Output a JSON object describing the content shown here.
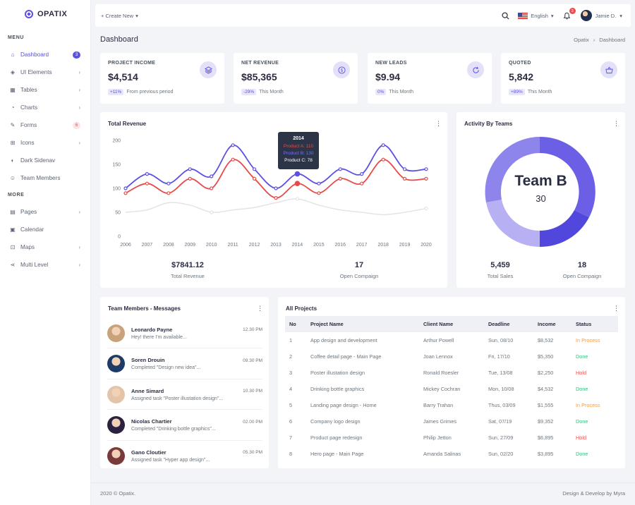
{
  "brand": {
    "name": "OPATIX"
  },
  "sidebar": {
    "menu_title": "MENU",
    "more_title": "MORE",
    "items": [
      {
        "label": "Dashboard",
        "icon": "home-icon",
        "badge": "3",
        "badge_type": "blue",
        "active": true
      },
      {
        "label": "UI Elements",
        "icon": "layers-icon",
        "chevron": true
      },
      {
        "label": "Tables",
        "icon": "table-icon",
        "chevron": true
      },
      {
        "label": "Charts",
        "icon": "pie-chart-icon",
        "chevron": true
      },
      {
        "label": "Forms",
        "icon": "form-icon",
        "badge": "6",
        "badge_type": "red"
      },
      {
        "label": "Icons",
        "icon": "grid-icon",
        "chevron": true
      },
      {
        "label": "Dark Sidenav",
        "icon": "moon-icon"
      },
      {
        "label": "Team Members",
        "icon": "users-icon"
      }
    ],
    "more_items": [
      {
        "label": "Pages",
        "icon": "file-icon",
        "chevron": true
      },
      {
        "label": "Calendar",
        "icon": "calendar-icon"
      },
      {
        "label": "Maps",
        "icon": "map-icon",
        "chevron": true
      },
      {
        "label": "Multi Level",
        "icon": "share-icon",
        "chevron": true
      }
    ]
  },
  "topbar": {
    "create_new": "+ Create New",
    "language": "English",
    "notification_count": "3",
    "user_name": "Jamie D."
  },
  "page": {
    "title": "Dashboard",
    "breadcrumb": [
      "Opatix",
      "›",
      "Dashboard"
    ]
  },
  "stats": [
    {
      "label": "PROJECT INCOME",
      "value": "$4,514",
      "chip": "+11%",
      "foot": "From previous period",
      "icon": "layers-icon"
    },
    {
      "label": "NET REVENUE",
      "value": "$85,365",
      "chip": "-29%",
      "foot": "This Month",
      "icon": "dollar-icon"
    },
    {
      "label": "NEW LEADS",
      "value": "$9.94",
      "chip": "0%",
      "foot": "This Month",
      "icon": "refresh-icon"
    },
    {
      "label": "QUOTED",
      "value": "5,842",
      "chip": "+89%",
      "foot": "This Month",
      "icon": "basket-icon"
    }
  ],
  "revenue": {
    "title": "Total Revenue",
    "total_value": "$7841.12",
    "total_label": "Total Revenue",
    "campaign_value": "17",
    "campaign_label": "Open Compaign",
    "tooltip": {
      "year": "2014",
      "a": "Product A: 110",
      "b": "Product B: 130",
      "c": "Product C: 78"
    }
  },
  "chart_data": {
    "type": "line",
    "title": "Total Revenue",
    "x": [
      "2006",
      "2007",
      "2008",
      "2009",
      "2010",
      "2011",
      "2012",
      "2013",
      "2014",
      "2015",
      "2016",
      "2017",
      "2018",
      "2019",
      "2020"
    ],
    "ylim": [
      0,
      200
    ],
    "yticks": [
      "0",
      "50",
      "100",
      "150",
      "200"
    ],
    "series": [
      {
        "name": "Product B",
        "color": "#5b50e0",
        "values": [
          100,
          130,
          110,
          140,
          125,
          190,
          140,
          100,
          130,
          110,
          140,
          130,
          190,
          140,
          140
        ]
      },
      {
        "name": "Product A",
        "color": "#e84a4a",
        "values": [
          90,
          110,
          90,
          120,
          100,
          160,
          120,
          80,
          110,
          90,
          120,
          110,
          160,
          120,
          120
        ]
      },
      {
        "name": "Product C",
        "color": "#e2e4ea",
        "values": [
          50,
          55,
          70,
          65,
          50,
          55,
          60,
          70,
          78,
          65,
          55,
          50,
          45,
          50,
          58
        ]
      }
    ]
  },
  "activity": {
    "title": "Activity By Teams",
    "center_label": "Team B",
    "center_value": "30",
    "sales_value": "5,459",
    "sales_label": "Total Sales",
    "campaign_value": "18",
    "campaign_label": "Open Compaign",
    "colors": [
      "#5b50e0",
      "#8a80ec",
      "#b7b1f4",
      "#7e76e6"
    ]
  },
  "messages": {
    "title": "Team Members - Messages",
    "items": [
      {
        "name": "Leonardo Payne",
        "text": "Hey! there I'm available...",
        "time": "12.30 PM",
        "avatar": "#c8a27a"
      },
      {
        "name": "Soren Drouin",
        "text": "Completed \"Design new idea\"...",
        "time": "09.30 PM",
        "avatar": "#1d3b66"
      },
      {
        "name": "Anne Simard",
        "text": "Assigned task \"Poster illustation design\"...",
        "time": "10.30 PM",
        "avatar": "#e3c4a8"
      },
      {
        "name": "Nicolas Chartier",
        "text": "Completed \"Drinking bottle graphics\"...",
        "time": "02.00 PM",
        "avatar": "#2a2240"
      },
      {
        "name": "Gano Cloutier",
        "text": "Assigned task \"Hyper app design\"...",
        "time": "05.30 PM",
        "avatar": "#7a3a3a"
      }
    ]
  },
  "projects": {
    "title": "All Projects",
    "columns": [
      "No",
      "Project Name",
      "Client Name",
      "Deadline",
      "Income",
      "Status"
    ],
    "rows": [
      [
        "1",
        "App design and development",
        "Arthur Powell",
        "Sun, 08/10",
        "$8,532",
        "In Process"
      ],
      [
        "2",
        "Coffee detail page - Main Page",
        "Joan Lennox",
        "Fri, 17/10",
        "$5,350",
        "Done"
      ],
      [
        "3",
        "Poster illustation design",
        "Ronald Roesler",
        "Tue, 13/08",
        "$2,250",
        "Hold"
      ],
      [
        "4",
        "Drinking bottle graphics",
        "Mickey Cochran",
        "Mon, 10/08",
        "$4,532",
        "Done"
      ],
      [
        "5",
        "Landing page design - Home",
        "Barry Trahan",
        "Thus, 03/09",
        "$1,555",
        "In Process"
      ],
      [
        "6",
        "Company logo design",
        "James Grimes",
        "Sat, 07/19",
        "$9,352",
        "Done"
      ],
      [
        "7",
        "Product page redesign",
        "Philip Jetton",
        "Sun, 27/09",
        "$6,895",
        "Hold"
      ],
      [
        "8",
        "Hero page - Main Page",
        "Amanda Salinas",
        "Sun, 02/20",
        "$3,895",
        "Done"
      ]
    ]
  },
  "footer": {
    "left": "2020 © Opatix.",
    "right": "Design & Develop by Myra"
  }
}
